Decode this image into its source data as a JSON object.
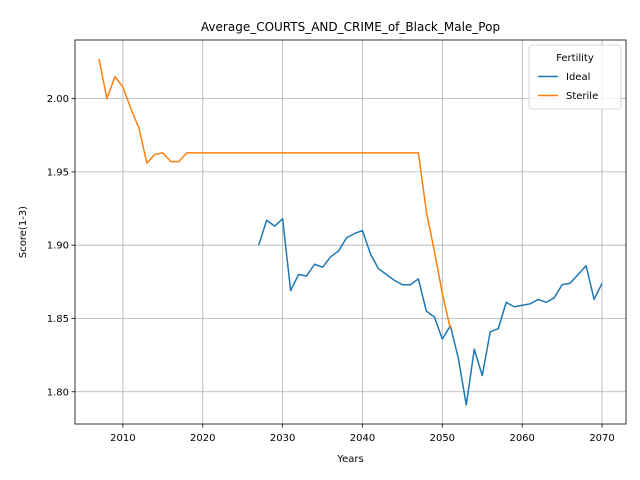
{
  "chart_data": {
    "type": "line",
    "title": "Average_COURTS_AND_CRIME_of_Black_Male_Pop",
    "xlabel": "Years",
    "ylabel": "Score(1-3)",
    "xlim": [
      2004,
      2073
    ],
    "ylim": [
      1.778,
      2.04
    ],
    "x_ticks": [
      2010,
      2020,
      2030,
      2040,
      2050,
      2060,
      2070
    ],
    "y_ticks": [
      1.8,
      1.85,
      1.9,
      1.95,
      2.0
    ],
    "grid": true,
    "legend": {
      "title": "Fertility",
      "placement": "top-right"
    },
    "series": [
      {
        "name": "Ideal",
        "color": "#1f77b4",
        "x": [
          2027,
          2028,
          2029,
          2030,
          2031,
          2032,
          2033,
          2034,
          2035,
          2036,
          2037,
          2038,
          2039,
          2040,
          2041,
          2042,
          2043,
          2044,
          2045,
          2046,
          2047,
          2048,
          2049,
          2050,
          2051,
          2052,
          2053,
          2054,
          2055,
          2056,
          2057,
          2058,
          2059,
          2060,
          2061,
          2062,
          2063,
          2064,
          2065,
          2066,
          2067,
          2068,
          2069,
          2070
        ],
        "values": [
          1.9,
          1.917,
          1.913,
          1.918,
          1.869,
          1.88,
          1.879,
          1.887,
          1.885,
          1.892,
          1.896,
          1.905,
          1.908,
          1.91,
          1.894,
          1.884,
          1.88,
          1.876,
          1.873,
          1.873,
          1.877,
          1.855,
          1.851,
          1.836,
          1.845,
          1.823,
          1.791,
          1.829,
          1.811,
          1.841,
          1.843,
          1.861,
          1.858,
          1.859,
          1.86,
          1.863,
          1.861,
          1.864,
          1.873,
          1.874,
          1.88,
          1.886,
          1.863,
          1.874
        ]
      },
      {
        "name": "Sterile",
        "color": "#ff7f0e",
        "x": [
          2007,
          2008,
          2009,
          2010,
          2011,
          2012,
          2013,
          2014,
          2015,
          2016,
          2017,
          2018,
          2019,
          2020,
          2021,
          2022,
          2023,
          2024,
          2025,
          2026,
          2027,
          2028,
          2029,
          2030,
          2031,
          2032,
          2033,
          2034,
          2035,
          2036,
          2037,
          2038,
          2039,
          2040,
          2041,
          2042,
          2043,
          2044,
          2045,
          2046,
          2047,
          2048,
          2049,
          2050,
          2051
        ],
        "values": [
          2.027,
          2.0,
          2.015,
          2.008,
          1.993,
          1.98,
          1.956,
          1.962,
          1.963,
          1.957,
          1.957,
          1.963,
          1.963,
          1.963,
          1.963,
          1.963,
          1.963,
          1.963,
          1.963,
          1.963,
          1.963,
          1.963,
          1.963,
          1.963,
          1.963,
          1.963,
          1.963,
          1.963,
          1.963,
          1.963,
          1.963,
          1.963,
          1.963,
          1.963,
          1.963,
          1.963,
          1.963,
          1.963,
          1.963,
          1.963,
          1.963,
          1.923,
          1.896,
          1.867,
          1.843
        ]
      }
    ]
  }
}
